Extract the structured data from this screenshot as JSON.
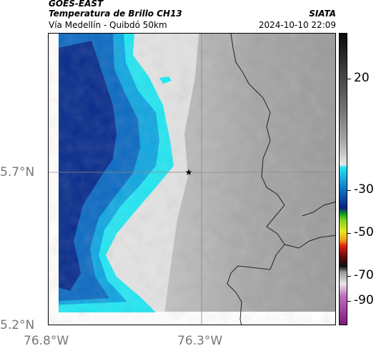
{
  "header": {
    "title": "GOES-EAST",
    "subtitle": "Temperatura de Brillo CH13",
    "route": "Vía Medellín - Quibdó 50km",
    "agency": "SIATA",
    "timestamp": "2024-10-10 22:09"
  },
  "axes": {
    "lat_labels": [
      "5.7°N",
      "5.2°N"
    ],
    "lon_labels": [
      "76.8°W",
      "76.3°W"
    ]
  },
  "colorbar": {
    "ticks": [
      20,
      -30,
      -50,
      -70,
      -90
    ],
    "tick_labels": [
      "20",
      "-30",
      "-50",
      "-70",
      "-90"
    ]
  },
  "map": {
    "marker": "star-icon"
  }
}
